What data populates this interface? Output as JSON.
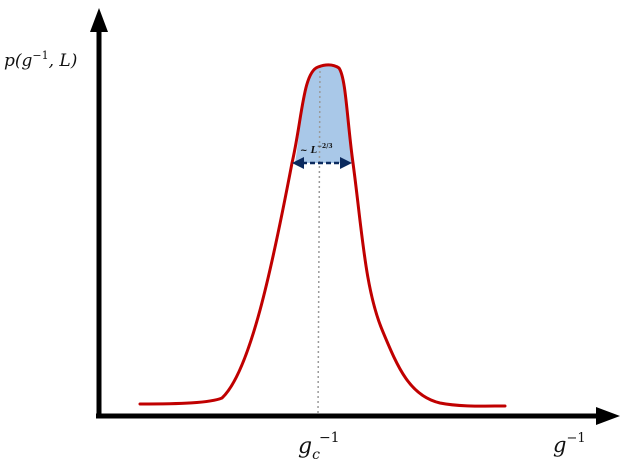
{
  "labels": {
    "y_axis": {
      "base": "p(g",
      "sup": "−1",
      "rest": ", L)"
    },
    "x_axis": {
      "base": "g",
      "sup": "−1"
    },
    "x_tick": {
      "base": "g",
      "sub": "c",
      "sup": "−1"
    },
    "width_annotation": {
      "prefix": "~ ",
      "base": "L",
      "sup": "−2/3"
    }
  },
  "colors": {
    "axes": "#000000",
    "curve": "#c00000",
    "peak_fill": "#a9c8e8",
    "arrow": "#0b2a5e",
    "center_line": "#9a9a9a"
  }
}
